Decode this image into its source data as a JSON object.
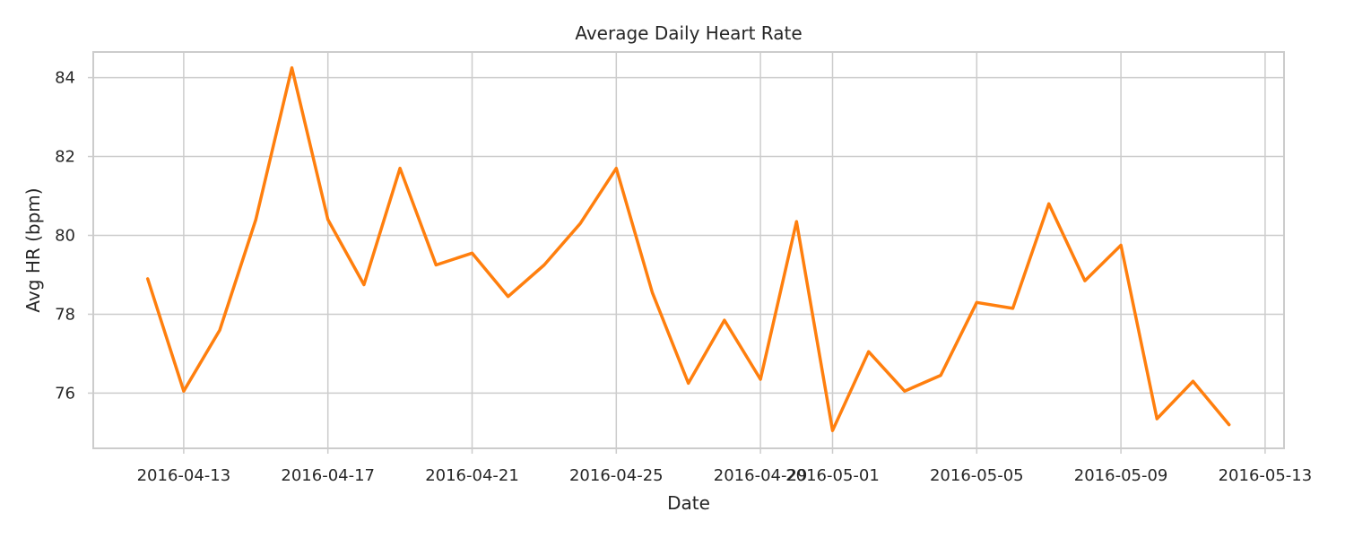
{
  "chart_data": {
    "type": "line",
    "title": "Average Daily Heart Rate",
    "xlabel": "Date",
    "ylabel": "Avg HR (bpm)",
    "x": [
      "2016-04-12",
      "2016-04-13",
      "2016-04-14",
      "2016-04-15",
      "2016-04-16",
      "2016-04-17",
      "2016-04-18",
      "2016-04-19",
      "2016-04-20",
      "2016-04-21",
      "2016-04-22",
      "2016-04-23",
      "2016-04-24",
      "2016-04-25",
      "2016-04-26",
      "2016-04-27",
      "2016-04-28",
      "2016-04-29",
      "2016-04-30",
      "2016-05-01",
      "2016-05-02",
      "2016-05-03",
      "2016-05-04",
      "2016-05-05",
      "2016-05-06",
      "2016-05-07",
      "2016-05-08",
      "2016-05-09",
      "2016-05-10",
      "2016-05-11",
      "2016-05-12"
    ],
    "series": [
      {
        "values": [
          78.9,
          76.05,
          77.6,
          80.4,
          84.25,
          80.4,
          78.75,
          81.7,
          79.25,
          79.55,
          78.45,
          79.25,
          80.3,
          81.7,
          78.55,
          76.25,
          77.85,
          76.35,
          80.35,
          75.05,
          77.05,
          76.05,
          76.45,
          78.3,
          78.15,
          80.8,
          78.85,
          79.75,
          75.35,
          76.3,
          75.2
        ],
        "color": "#ff7f0e"
      }
    ],
    "xticks": [
      "2016-04-13",
      "2016-04-17",
      "2016-04-21",
      "2016-04-25",
      "2016-04-29",
      "2016-05-01",
      "2016-05-05",
      "2016-05-09",
      "2016-05-13"
    ],
    "yticks": [
      76,
      78,
      80,
      82,
      84
    ],
    "xlim": [
      "2016-04-11",
      "2016-05-13"
    ],
    "ylim": [
      74.6,
      84.65
    ],
    "grid": true,
    "legend": false
  }
}
